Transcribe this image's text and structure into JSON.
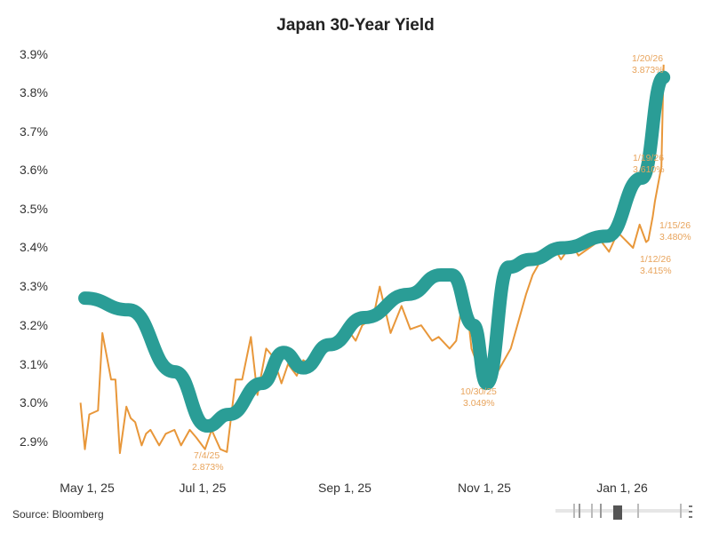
{
  "chart_data": {
    "type": "line",
    "title": "Japan 30-Year Yield",
    "xlabel": "",
    "ylabel": "",
    "ylim": [
      2.85,
      3.92
    ],
    "grid": false,
    "y_ticks": [
      "3.9%",
      "3.8%",
      "3.7%",
      "3.6%",
      "3.5%",
      "3.4%",
      "3.3%",
      "3.2%",
      "3.1%",
      "3.0%",
      "2.9%"
    ],
    "x_ticks": [
      "May 1, 25",
      "Jul 1, 25",
      "Sep 1, 25",
      "Nov 1, 25",
      "Jan 1, 26"
    ],
    "series": [
      {
        "name": "Japan 30-Year Yield",
        "color": "#e8973a",
        "x": [
          "2025-04-28",
          "2025-04-30",
          "2025-05-02",
          "2025-05-06",
          "2025-05-08",
          "2025-05-12",
          "2025-05-14",
          "2025-05-16",
          "2025-05-19",
          "2025-05-21",
          "2025-05-23",
          "2025-05-26",
          "2025-05-28",
          "2025-05-30",
          "2025-06-03",
          "2025-06-06",
          "2025-06-10",
          "2025-06-13",
          "2025-06-17",
          "2025-06-20",
          "2025-06-24",
          "2025-06-27",
          "2025-07-01",
          "2025-07-04",
          "2025-07-08",
          "2025-07-11",
          "2025-07-15",
          "2025-07-18",
          "2025-07-22",
          "2025-07-25",
          "2025-07-29",
          "2025-08-01",
          "2025-08-05",
          "2025-08-08",
          "2025-08-13",
          "2025-08-18",
          "2025-08-22",
          "2025-08-27",
          "2025-09-01",
          "2025-09-04",
          "2025-09-09",
          "2025-09-12",
          "2025-09-17",
          "2025-09-22",
          "2025-09-26",
          "2025-10-01",
          "2025-10-06",
          "2025-10-09",
          "2025-10-14",
          "2025-10-17",
          "2025-10-21",
          "2025-10-24",
          "2025-10-28",
          "2025-10-30",
          "2025-11-04",
          "2025-11-07",
          "2025-11-11",
          "2025-11-14",
          "2025-11-18",
          "2025-11-21",
          "2025-11-26",
          "2025-12-01",
          "2025-12-04",
          "2025-12-09",
          "2025-12-12",
          "2025-12-17",
          "2025-12-22",
          "2025-12-26",
          "2025-12-30",
          "2026-01-06",
          "2026-01-09",
          "2026-01-12",
          "2026-01-13",
          "2026-01-15",
          "2026-01-16",
          "2026-01-19",
          "2026-01-20"
        ],
        "values": [
          3.0,
          2.88,
          2.97,
          2.98,
          3.18,
          3.06,
          3.06,
          2.87,
          2.99,
          2.96,
          2.95,
          2.89,
          2.92,
          2.93,
          2.89,
          2.92,
          2.93,
          2.89,
          2.93,
          2.91,
          2.88,
          2.93,
          2.88,
          2.873,
          3.06,
          3.06,
          3.17,
          3.02,
          3.14,
          3.12,
          3.05,
          3.1,
          3.07,
          3.11,
          3.09,
          3.15,
          3.14,
          3.2,
          3.16,
          3.2,
          3.22,
          3.3,
          3.18,
          3.25,
          3.19,
          3.2,
          3.16,
          3.17,
          3.14,
          3.16,
          3.3,
          3.14,
          3.08,
          3.049,
          3.07,
          3.1,
          3.14,
          3.2,
          3.28,
          3.33,
          3.38,
          3.4,
          3.37,
          3.41,
          3.38,
          3.4,
          3.42,
          3.39,
          3.44,
          3.4,
          3.46,
          3.415,
          3.42,
          3.48,
          3.52,
          3.61,
          3.873
        ]
      },
      {
        "name": "hand-drawn trend overlay",
        "color": "#2a9d96",
        "x": [
          "2025-04-30",
          "2025-05-20",
          "2025-06-10",
          "2025-06-25",
          "2025-07-05",
          "2025-07-20",
          "2025-07-30",
          "2025-08-08",
          "2025-08-20",
          "2025-09-05",
          "2025-09-25",
          "2025-10-10",
          "2025-10-15",
          "2025-10-25",
          "2025-10-31",
          "2025-11-10",
          "2025-11-20",
          "2025-12-05",
          "2025-12-25",
          "2026-01-10",
          "2026-01-20"
        ],
        "values": [
          3.27,
          3.24,
          3.08,
          2.94,
          2.97,
          3.05,
          3.13,
          3.09,
          3.15,
          3.22,
          3.28,
          3.33,
          3.33,
          3.2,
          3.05,
          3.35,
          3.37,
          3.4,
          3.43,
          3.58,
          3.84
        ]
      }
    ],
    "annotations": [
      {
        "label": "7/4/25",
        "value": "2.873%"
      },
      {
        "label": "10/30/25",
        "value": "3.049%"
      },
      {
        "label": "1/12/26",
        "value": "3.415%"
      },
      {
        "label": "1/15/26",
        "value": "3.480%"
      },
      {
        "label": "1/19/26",
        "value": "3.610%"
      },
      {
        "label": "1/20/26",
        "value": "3.873%"
      }
    ],
    "legend_position": "none"
  },
  "source": "Source: Bloomberg",
  "colors": {
    "yield_line": "#e8973a",
    "overlay": "#2a9d96",
    "annotation_text": "#e8a45c"
  }
}
